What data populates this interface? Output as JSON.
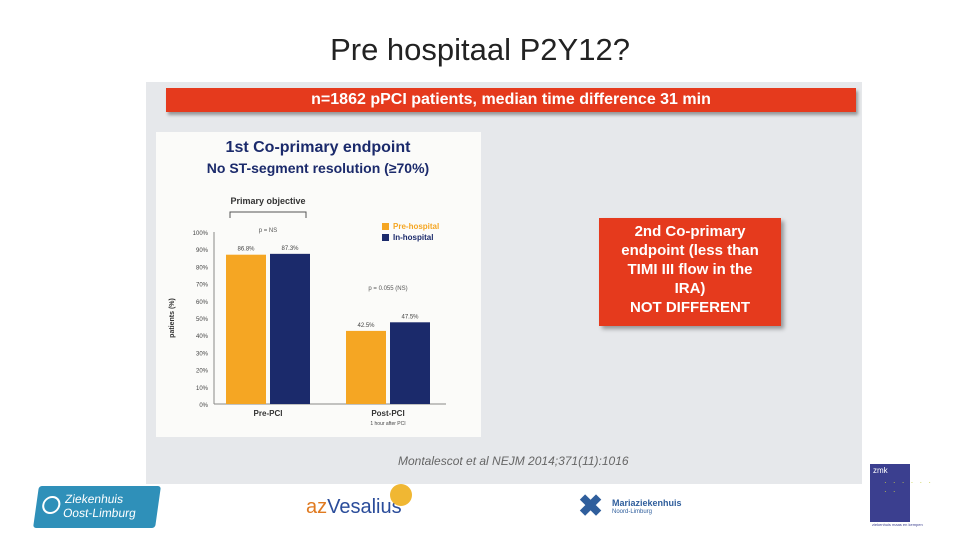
{
  "slide": {
    "title": "Pre hospitaal P2Y12?"
  },
  "banner": {
    "text": "n=1862 pPCI patients, median time difference 31 min"
  },
  "chart_data": {
    "type": "bar",
    "title": "1st Co-primary endpoint",
    "subtitle": "No ST-segment resolution (≥70%)",
    "bracket_label": "Primary objective",
    "ylabel": "patients (%)",
    "ylim": [
      0,
      100
    ],
    "yticks": [
      "0%",
      "10%",
      "20%",
      "30%",
      "40%",
      "50%",
      "60%",
      "70%",
      "80%",
      "90%",
      "100%"
    ],
    "categories": [
      "Pre-PCI",
      "Post-PCI"
    ],
    "category_note": "1 hour after PCI",
    "series": [
      {
        "name": "Pre-hospital",
        "color": "#f5a623",
        "values": [
          86.8,
          42.5
        ],
        "labels": [
          "86.8%",
          "42.5%"
        ]
      },
      {
        "name": "In-hospital",
        "color": "#1b2a6b",
        "values": [
          87.3,
          47.5
        ],
        "labels": [
          "87.3%",
          "47.5%"
        ]
      }
    ],
    "annotations": [
      "p = NS",
      "p = 0.055 (NS)"
    ]
  },
  "endpoint2": {
    "lines": [
      "2nd Co-primary",
      "endpoint (less than",
      "TIMI III flow in the",
      "IRA)",
      "NOT DIFFERENT"
    ]
  },
  "citation": "Montalescot et al NEJM 2014;371(11):1016",
  "logos": {
    "zol": {
      "line1": "Ziekenhuis",
      "line2": "Oost-Limburg"
    },
    "vesalius": {
      "prefix": "az",
      "name": "Vesalius"
    },
    "maria": {
      "line1": "Mariaziekenhuis",
      "line2": "Noord-Limburg"
    },
    "zmk": {
      "abbr": "zmk",
      "tagline": "ziekenhuis maas en kempen"
    }
  },
  "colors": {
    "accent_red": "#e53a1d",
    "panel_bg": "#e6e8eb",
    "orange": "#f5a623",
    "navy": "#1b2a6b"
  }
}
